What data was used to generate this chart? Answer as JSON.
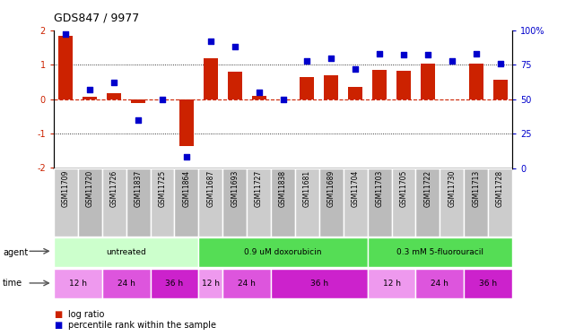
{
  "title": "GDS847 / 9977",
  "samples": [
    "GSM11709",
    "GSM11720",
    "GSM11726",
    "GSM11837",
    "GSM11725",
    "GSM11864",
    "GSM11687",
    "GSM11693",
    "GSM11727",
    "GSM11838",
    "GSM11681",
    "GSM11689",
    "GSM11704",
    "GSM11703",
    "GSM11705",
    "GSM11722",
    "GSM11730",
    "GSM11713",
    "GSM11728"
  ],
  "log_ratio": [
    1.85,
    0.08,
    0.18,
    -0.12,
    0.0,
    -1.35,
    1.2,
    0.8,
    0.1,
    0.0,
    0.65,
    0.68,
    0.35,
    0.85,
    0.82,
    1.02,
    0.0,
    1.02,
    0.55
  ],
  "percentile": [
    97,
    57,
    62,
    35,
    50,
    8,
    92,
    88,
    55,
    50,
    78,
    80,
    72,
    83,
    82,
    82,
    78,
    83,
    76
  ],
  "bar_color": "#cc2200",
  "dot_color": "#0000cc",
  "yticks_left": [
    -2,
    -1,
    0,
    1,
    2
  ],
  "yticks_right": [
    0,
    25,
    50,
    75,
    100
  ],
  "ylim_left": [
    -2,
    2
  ],
  "ylim_right": [
    0,
    100
  ],
  "hline_color": "#cc2200",
  "dotline_color": "#000000",
  "agent_groups": [
    {
      "label": "untreated",
      "start": 0,
      "end": 6,
      "color": "#ccffcc"
    },
    {
      "label": "0.9 uM doxorubicin",
      "start": 6,
      "end": 13,
      "color": "#55dd55"
    },
    {
      "label": "0.3 mM 5-fluorouracil",
      "start": 13,
      "end": 19,
      "color": "#55dd55"
    }
  ],
  "time_groups": [
    {
      "label": "12 h",
      "start": 0,
      "end": 2,
      "color": "#ee99ee"
    },
    {
      "label": "24 h",
      "start": 2,
      "end": 4,
      "color": "#dd55dd"
    },
    {
      "label": "36 h",
      "start": 4,
      "end": 6,
      "color": "#cc22cc"
    },
    {
      "label": "12 h",
      "start": 6,
      "end": 7,
      "color": "#ee99ee"
    },
    {
      "label": "24 h",
      "start": 7,
      "end": 9,
      "color": "#dd55dd"
    },
    {
      "label": "36 h",
      "start": 9,
      "end": 13,
      "color": "#cc22cc"
    },
    {
      "label": "12 h",
      "start": 13,
      "end": 15,
      "color": "#ee99ee"
    },
    {
      "label": "24 h",
      "start": 15,
      "end": 17,
      "color": "#dd55dd"
    },
    {
      "label": "36 h",
      "start": 17,
      "end": 19,
      "color": "#cc22cc"
    }
  ]
}
